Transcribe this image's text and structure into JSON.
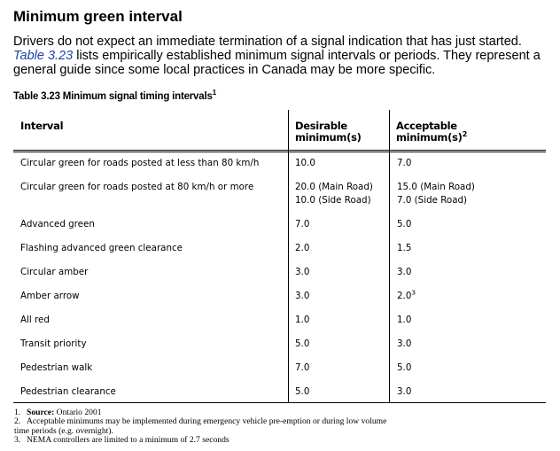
{
  "heading": "Minimum green interval",
  "intro": {
    "text_before_link": "Drivers do not expect an immediate termination of a signal indication that has just started.",
    "link_text": "Table 3.23",
    "text_after_link": "lists empirically established minimum signal intervals or periods. They represent a general guide since some local practices in Canada may be more specific."
  },
  "table": {
    "caption": "Table 3.23 Minimum signal timing intervals",
    "caption_sup": "1",
    "headers": {
      "interval": "Interval",
      "desirable_line1": "Desirable",
      "desirable_line2": "minimum(s)",
      "acceptable_line1": "Acceptable",
      "acceptable_line2": "minimum(s)",
      "acceptable_sup": "2"
    },
    "rows": [
      {
        "interval": "Circular green for roads posted at less than 80 km/h",
        "desirable": [
          "10.0"
        ],
        "acceptable": [
          "7.0"
        ]
      },
      {
        "interval": "Circular green for roads posted at 80 km/h or more",
        "desirable": [
          "20.0 (Main Road)",
          "10.0 (Side Road)"
        ],
        "acceptable": [
          "15.0 (Main Road)",
          "7.0 (Side Road)"
        ]
      },
      {
        "interval": "Advanced green",
        "desirable": [
          "7.0"
        ],
        "acceptable": [
          "5.0"
        ]
      },
      {
        "interval": "Flashing advanced green clearance",
        "desirable": [
          "2.0"
        ],
        "acceptable": [
          "1.5"
        ]
      },
      {
        "interval": "Circular amber",
        "desirable": [
          "3.0"
        ],
        "acceptable": [
          "3.0"
        ]
      },
      {
        "interval": "Amber arrow",
        "desirable": [
          "3.0"
        ],
        "acceptable": [
          "2.0"
        ],
        "acceptable_sup": "3"
      },
      {
        "interval": "All red",
        "desirable": [
          "1.0"
        ],
        "acceptable": [
          "1.0"
        ]
      },
      {
        "interval": "Transit priority",
        "desirable": [
          "5.0"
        ],
        "acceptable": [
          "3.0"
        ]
      },
      {
        "interval": "Pedestrian walk",
        "desirable": [
          "7.0"
        ],
        "acceptable": [
          "5.0"
        ]
      },
      {
        "interval": "Pedestrian clearance",
        "desirable": [
          "5.0"
        ],
        "acceptable": [
          "3.0"
        ]
      }
    ]
  },
  "notes": [
    {
      "num": "1.",
      "label": "Source:",
      "text": "Ontario 2001"
    },
    {
      "num": "2.",
      "text": "Acceptable minimums may be implemented during emergency vehicle pre-emption or during low volume",
      "continuation": "time periods (e.g. overnight)."
    },
    {
      "num": "3.",
      "text": "NEMA controllers are limited to a minimum of 2.7 seconds"
    }
  ]
}
